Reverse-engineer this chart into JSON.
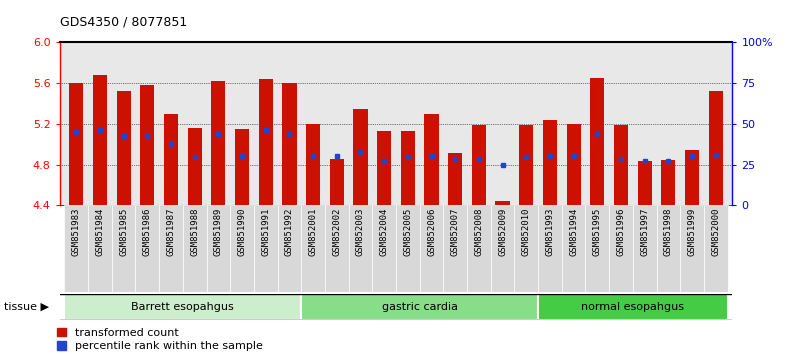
{
  "title": "GDS4350 / 8077851",
  "samples": [
    "GSM851983",
    "GSM851984",
    "GSM851985",
    "GSM851986",
    "GSM851987",
    "GSM851988",
    "GSM851989",
    "GSM851990",
    "GSM851991",
    "GSM851992",
    "GSM852001",
    "GSM852002",
    "GSM852003",
    "GSM852004",
    "GSM852005",
    "GSM852006",
    "GSM852007",
    "GSM852008",
    "GSM852009",
    "GSM852010",
    "GSM851993",
    "GSM851994",
    "GSM851995",
    "GSM851996",
    "GSM851997",
    "GSM851998",
    "GSM851999",
    "GSM852000"
  ],
  "red_values": [
    5.6,
    5.68,
    5.52,
    5.58,
    5.3,
    5.16,
    5.62,
    5.15,
    5.64,
    5.6,
    5.2,
    4.86,
    5.35,
    5.13,
    5.13,
    5.3,
    4.91,
    5.19,
    4.44,
    5.19,
    5.24,
    5.2,
    5.65,
    5.19,
    4.84,
    4.85,
    4.94,
    5.52
  ],
  "blue_values": [
    5.12,
    5.14,
    5.08,
    5.08,
    5.0,
    4.87,
    5.1,
    4.88,
    5.14,
    5.1,
    4.88,
    4.88,
    4.92,
    4.84,
    4.87,
    4.88,
    4.86,
    4.86,
    4.8,
    4.87,
    4.88,
    4.88,
    5.1,
    4.86,
    4.84,
    4.84,
    4.88,
    4.89
  ],
  "groups": [
    {
      "label": "Barrett esopahgus",
      "start": 0,
      "end": 10,
      "color": "#cceecc"
    },
    {
      "label": "gastric cardia",
      "start": 10,
      "end": 20,
      "color": "#88dd88"
    },
    {
      "label": "normal esopahgus",
      "start": 20,
      "end": 28,
      "color": "#44cc44"
    }
  ],
  "ymin": 4.4,
  "ymax": 6.0,
  "yticks": [
    4.4,
    4.8,
    5.2,
    5.6,
    6.0
  ],
  "right_yticks": [
    0,
    25,
    50,
    75,
    100
  ],
  "bar_color": "#cc1100",
  "blue_color": "#2244cc",
  "baseline": 4.4,
  "plot_bg": "#e8e8e8",
  "xticklabel_bg": "#d8d8d8"
}
